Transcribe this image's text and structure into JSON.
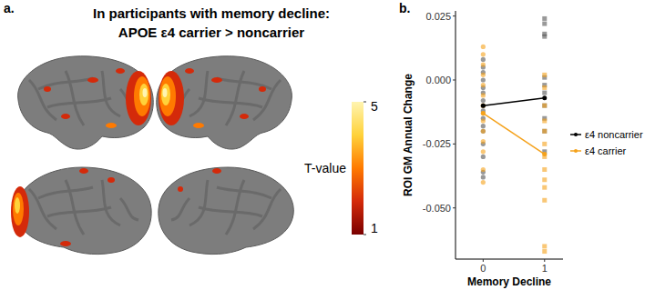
{
  "chart_data": [
    {
      "type": "brain_map",
      "panel_label": "a.",
      "title": "In participants with memory decline:",
      "subtitle": "APOE ε4 carrier > noncarrier",
      "colorbar": {
        "label": "T-value",
        "range": [
          1,
          5
        ],
        "ticks": [
          1,
          5
        ]
      }
    },
    {
      "type": "scatter",
      "panel_label": "b.",
      "xlabel": "Memory Decline",
      "ylabel": "ROI GM Annual Change",
      "xlim": [
        -0.45,
        1.3
      ],
      "xticks": [
        0,
        1
      ],
      "ylim": [
        -0.07,
        0.027
      ],
      "yticks": [
        {
          "value": -0.05,
          "label": "-0.050"
        },
        -0.025,
        {
          "value": 0,
          "label": "0.000"
        },
        0.025
      ],
      "legend": "right",
      "series": [
        {
          "name": "ε4 noncarrier",
          "color": "#000000",
          "type": "line",
          "marker": "circle",
          "x": [
            0,
            1
          ],
          "values": [
            -0.01,
            -0.007
          ],
          "points": [
            {
              "marker": "circle",
              "x": [
                0,
                0,
                0,
                0,
                0,
                0,
                0,
                0,
                0,
                0,
                0,
                0,
                0,
                0,
                0,
                0
              ],
              "values": [
                -0.038,
                -0.036,
                -0.03,
                -0.025,
                -0.02,
                -0.018,
                -0.015,
                -0.012,
                -0.01,
                -0.008,
                -0.005,
                -0.003,
                0.0,
                0.003,
                0.005,
                0.008
              ]
            },
            {
              "marker": "square",
              "x": [
                1,
                1,
                1,
                1,
                1,
                1,
                1,
                1,
                1,
                1,
                1
              ],
              "values": [
                0.024,
                0.022,
                0.018,
                0.017,
                0.001,
                -0.002,
                -0.005,
                -0.01,
                -0.015,
                -0.02,
                -0.028
              ]
            }
          ]
        },
        {
          "name": "ε4 carrier",
          "color": "#f5a21b",
          "type": "line",
          "marker": "circle",
          "x": [
            0,
            1
          ],
          "values": [
            -0.013,
            -0.029
          ],
          "points": [
            {
              "marker": "circle",
              "x": [
                0,
                0,
                0,
                0,
                0,
                0,
                0,
                0,
                0,
                0,
                0,
                0,
                0,
                0
              ],
              "values": [
                0.013,
                0.01,
                0.006,
                0.002,
                -0.002,
                -0.006,
                -0.01,
                -0.013,
                -0.016,
                -0.02,
                -0.024,
                -0.028,
                -0.035,
                -0.04
              ]
            },
            {
              "marker": "square",
              "x": [
                1,
                1,
                1,
                1,
                1,
                1,
                1,
                1,
                1,
                1,
                1,
                1,
                1
              ],
              "values": [
                0.002,
                -0.003,
                -0.01,
                -0.016,
                -0.02,
                -0.025,
                -0.03,
                -0.035,
                -0.039,
                -0.042,
                -0.047,
                -0.065,
                -0.067
              ]
            }
          ]
        }
      ]
    }
  ]
}
